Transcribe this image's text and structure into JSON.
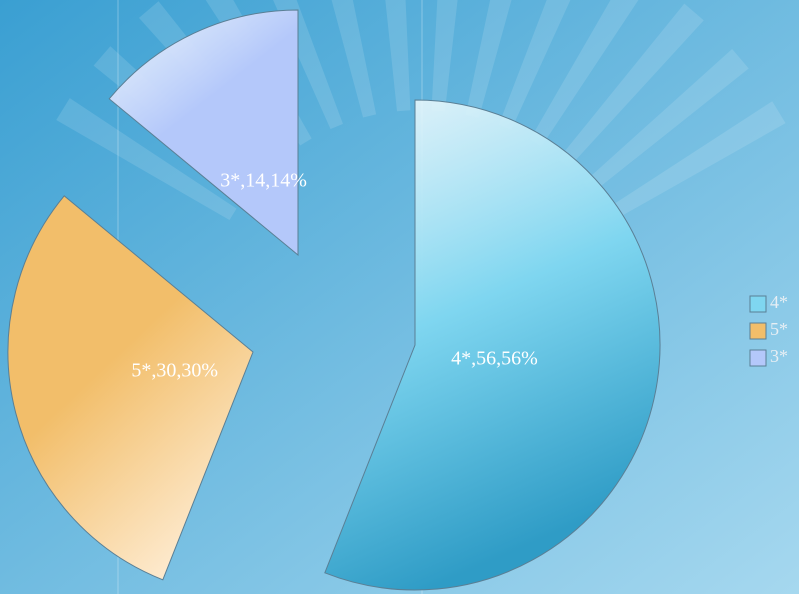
{
  "chart_data": {
    "type": "pie",
    "categories": [
      "4*",
      "5*",
      "3*"
    ],
    "values": [
      56,
      30,
      14
    ],
    "value_labels": [
      "4*,56,56%",
      "5*,30,30%",
      "3*,14,14%"
    ],
    "colors": [
      "#7fd6f0",
      "#f2be6a",
      "#b4c8fa"
    ],
    "legend": "right"
  }
}
